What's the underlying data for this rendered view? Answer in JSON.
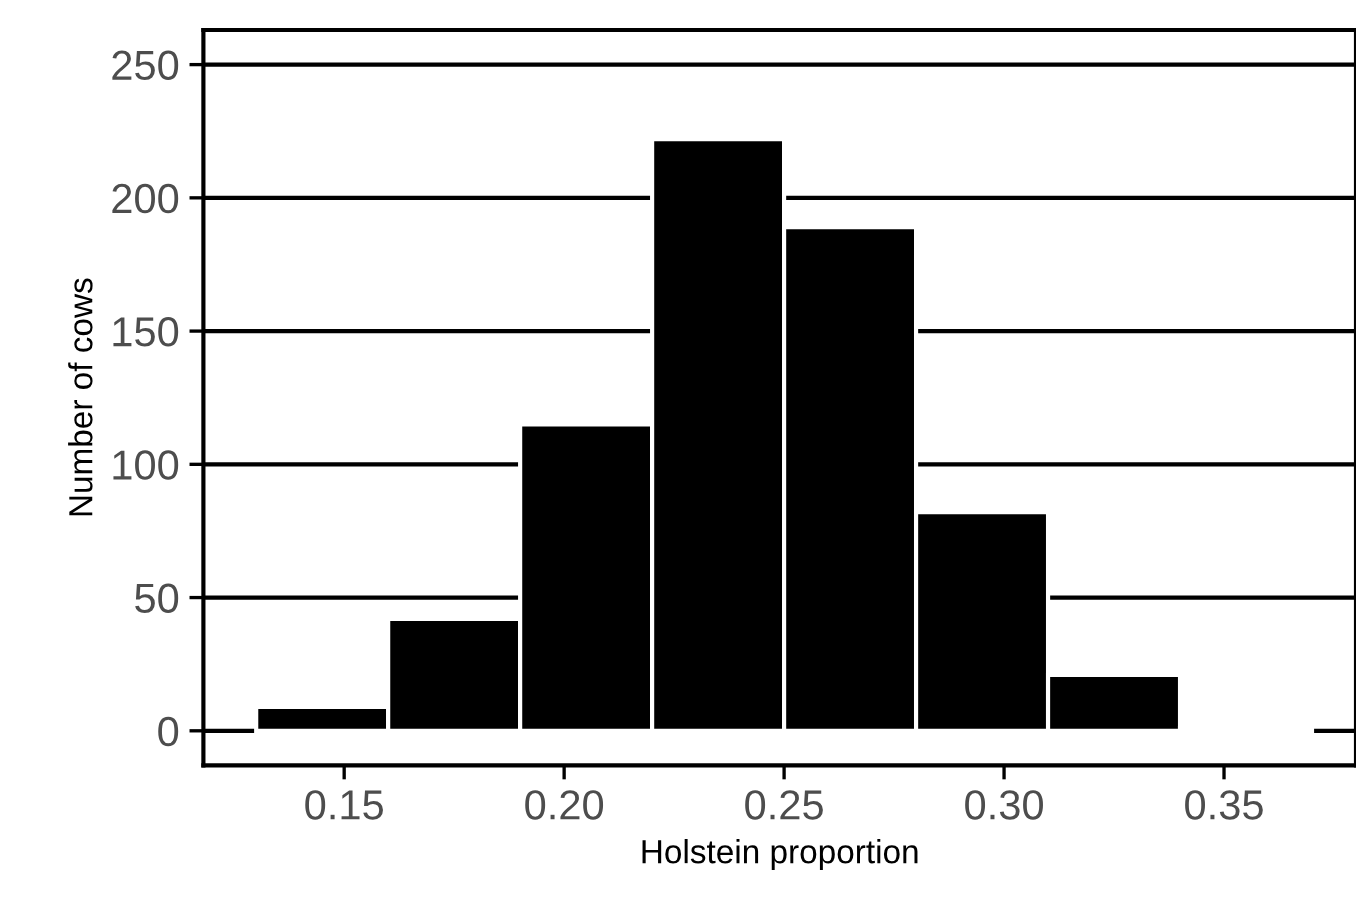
{
  "chart_data": {
    "type": "histogram",
    "xlabel": "Holstein proportion",
    "ylabel": "Number of cows",
    "bins": [
      0.13,
      0.16,
      0.19,
      0.22,
      0.25,
      0.28,
      0.31,
      0.34,
      0.37
    ],
    "values": [
      9,
      42,
      115,
      222,
      189,
      82,
      21,
      1
    ],
    "color": "#000000",
    "xlim": [
      0.118,
      0.38
    ],
    "ylim": [
      -13,
      263
    ],
    "xticks": [
      {
        "value": 0.15,
        "label": "0.15"
      },
      {
        "value": 0.2,
        "label": "0.20"
      },
      {
        "value": 0.25,
        "label": "0.25"
      },
      {
        "value": 0.3,
        "label": "0.30"
      },
      {
        "value": 0.35,
        "label": "0.35"
      }
    ],
    "yticks": [
      0,
      50,
      100,
      150,
      200,
      250
    ],
    "grid": "y"
  }
}
